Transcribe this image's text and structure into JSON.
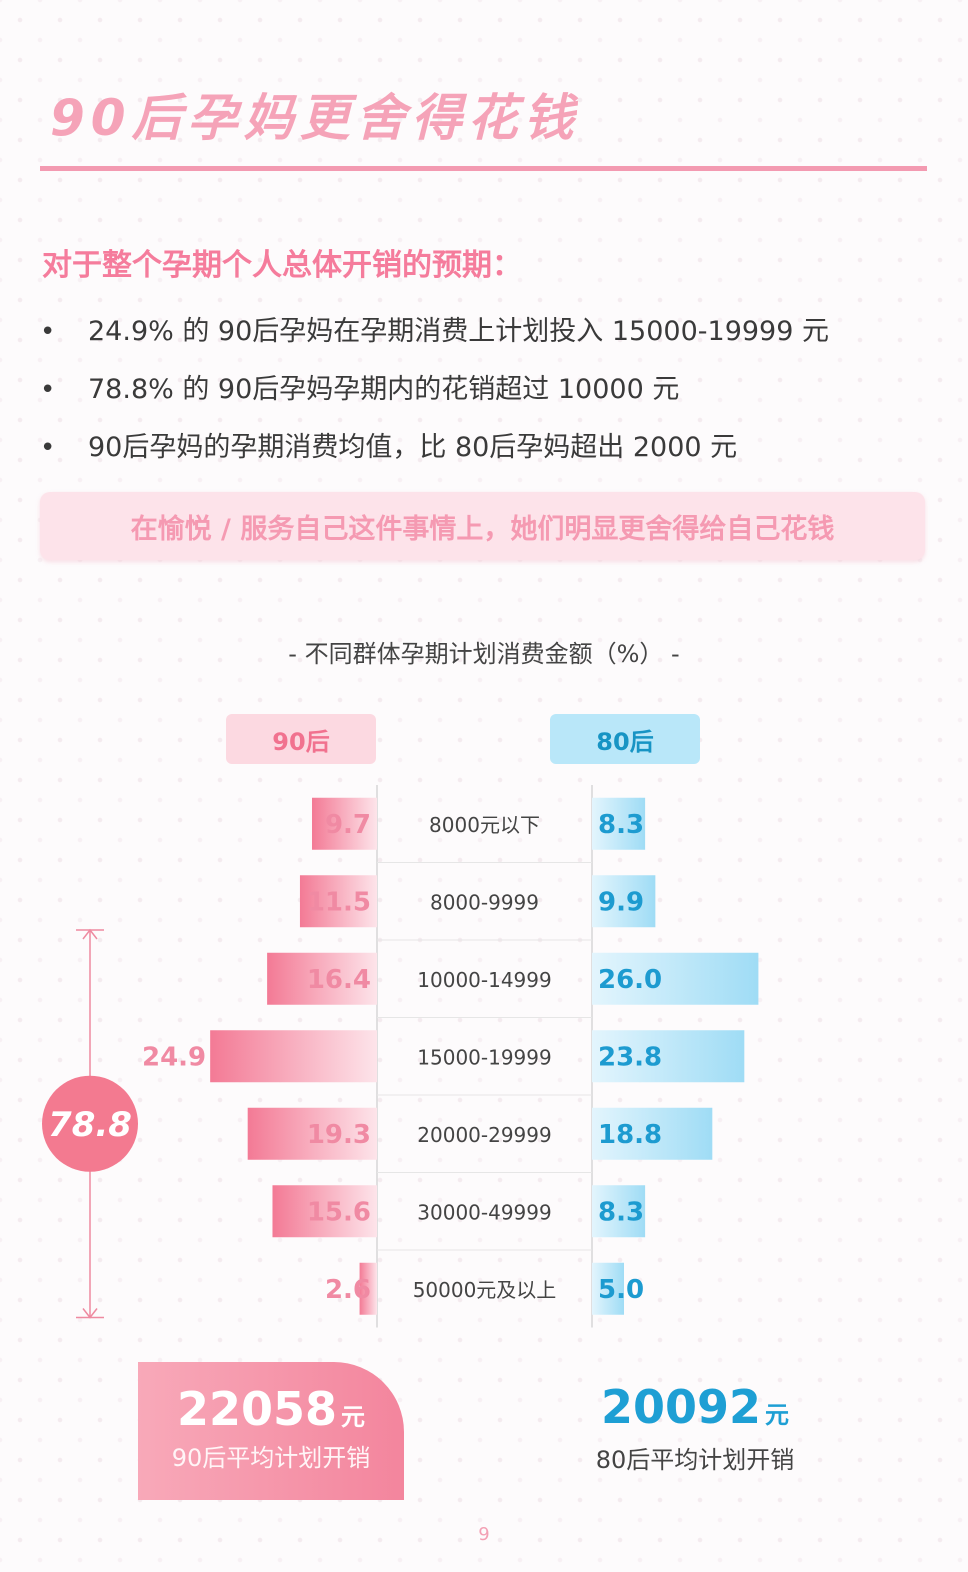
{
  "header": {
    "title": "90后孕妈更舍得花钱",
    "subtitle": "对于整个孕期个人总体开销的预期：",
    "bullets": [
      "24.9% 的 90后孕妈在孕期消费上计划投入 15000-19999 元",
      "78.8% 的 90后孕妈孕期内的花销超过 10000 元",
      "90后孕妈的孕期消费均值，比 80后孕妈超出 2000 元"
    ],
    "highlight": "在愉悦 / 服务自己这件事情上，她们明显更舍得给自己花钱",
    "bullet_glyph": "•"
  },
  "chart_title": "-   不同群体孕期计划消费金额（%）   -",
  "chart_data": {
    "type": "bar",
    "orientation": "horizontal-butterfly",
    "categories": [
      "8000元以下",
      "8000-9999",
      "10000-14999",
      "15000-19999",
      "20000-29999",
      "30000-49999",
      "50000元及以上"
    ],
    "series": [
      {
        "name": "90后",
        "values": [
          9.7,
          11.5,
          16.4,
          24.9,
          19.3,
          15.6,
          2.6
        ],
        "color": "#f37a95"
      },
      {
        "name": "80后",
        "values": [
          8.3,
          9.9,
          26.0,
          23.8,
          18.8,
          8.3,
          5.0
        ],
        "color": "#8fd6f3"
      }
    ],
    "bracket": {
      "label": "78.8",
      "from_category": "10000-14999",
      "to_category": "50000元及以上"
    },
    "unit": "%"
  },
  "summary": {
    "avg90": {
      "value": "22058",
      "unit": "元",
      "label": "90后平均计划开销"
    },
    "avg80": {
      "value": "20092",
      "unit": "元",
      "label": "80后平均计划开销"
    }
  },
  "page_number": "9"
}
